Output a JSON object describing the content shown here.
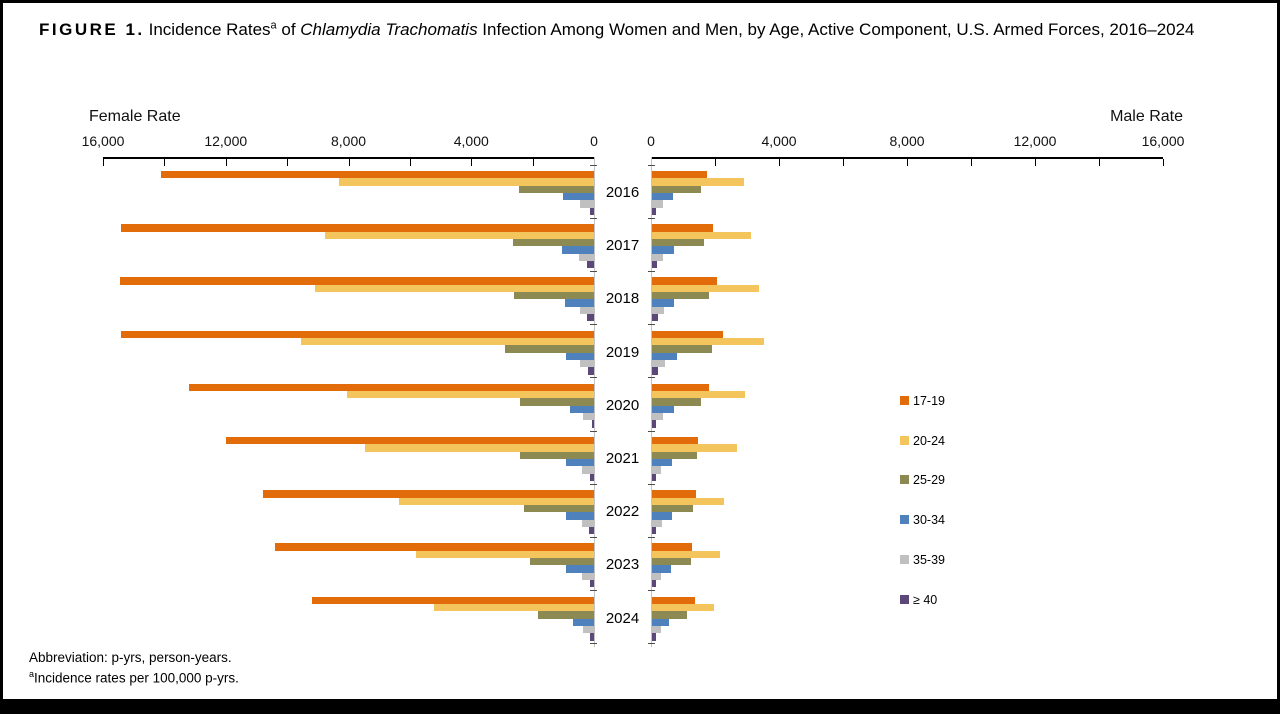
{
  "title": {
    "figure_label": "FIGURE 1.",
    "part1": "Incidence Rates",
    "superscript": "a",
    "part2": " of ",
    "italic": "Chlamydia Trachomatis",
    "part3": " Infection Among Women and Men, by Age, Active Component, U.S. Armed Forces, 2016–2024"
  },
  "axes": {
    "female_title": "Female Rate",
    "male_title": "Male Rate",
    "female_ticks": [
      {
        "label": "16,000",
        "value": 16000
      },
      {
        "label": "12,000",
        "value": 12000
      },
      {
        "label": "8,000",
        "value": 8000
      },
      {
        "label": "4,000",
        "value": 4000
      },
      {
        "label": "0",
        "value": 0
      }
    ],
    "male_ticks": [
      {
        "label": "0",
        "value": 0
      },
      {
        "label": "4,000",
        "value": 4000
      },
      {
        "label": "8,000",
        "value": 8000
      },
      {
        "label": "12,000",
        "value": 12000
      },
      {
        "label": "16,000",
        "value": 16000
      }
    ],
    "minor_tick_step": 2000,
    "max": 16000
  },
  "legend": [
    {
      "label": "17-19",
      "color": "#E36C0A"
    },
    {
      "label": "20-24",
      "color": "#F4C55C"
    },
    {
      "label": "25-29",
      "color": "#8C8A52"
    },
    {
      "label": "30-34",
      "color": "#4F81BD"
    },
    {
      "label": "35-39",
      "color": "#C0C0C0"
    },
    {
      "label": "≥ 40",
      "color": "#5B4778"
    }
  ],
  "footnotes": {
    "line1": "Abbreviation: p-yrs, person-years.",
    "line2_sup": "a",
    "line2": "Incidence rates per 100,000 p-yrs."
  },
  "chart_data": {
    "type": "bar",
    "orientation": "population-pyramid",
    "title": "Incidence Rates of Chlamydia Trachomatis Infection Among Women and Men, by Age, Active Component, U.S. Armed Forces, 2016-2024",
    "unit": "incidence rate per 100,000 p-yrs",
    "categories": [
      "2016",
      "2017",
      "2018",
      "2019",
      "2020",
      "2021",
      "2022",
      "2023",
      "2024"
    ],
    "age_groups": [
      "17-19",
      "20-24",
      "25-29",
      "30-34",
      "35-39",
      "≥ 40"
    ],
    "axis_range": [
      0,
      16000
    ],
    "grid": false,
    "legend_position": "right",
    "female": {
      "series": [
        {
          "name": "17-19",
          "values": [
            14100,
            15400,
            15450,
            15400,
            13200,
            12000,
            10800,
            10400,
            9200
          ]
        },
        {
          "name": "20-24",
          "values": [
            8300,
            8750,
            9100,
            9550,
            8050,
            7450,
            6350,
            5800,
            5200
          ]
        },
        {
          "name": "25-29",
          "values": [
            2450,
            2650,
            2600,
            2900,
            2400,
            2400,
            2270,
            2070,
            1810
          ]
        },
        {
          "name": "30-34",
          "values": [
            1000,
            1030,
            950,
            920,
            790,
            900,
            900,
            900,
            700
          ]
        },
        {
          "name": "35-39",
          "values": [
            450,
            490,
            440,
            460,
            350,
            400,
            400,
            380,
            370
          ]
        },
        {
          "name": "≥ 40",
          "values": [
            120,
            240,
            220,
            210,
            80,
            140,
            165,
            140,
            130
          ]
        }
      ]
    },
    "male": {
      "series": [
        {
          "name": "17-19",
          "values": [
            1720,
            1920,
            2040,
            2240,
            1810,
            1440,
            1380,
            1250,
            1360
          ]
        },
        {
          "name": "20-24",
          "values": [
            2900,
            3100,
            3350,
            3530,
            2930,
            2660,
            2280,
            2130,
            1950
          ]
        },
        {
          "name": "25-29",
          "values": [
            1550,
            1640,
            1790,
            1900,
            1550,
            1430,
            1290,
            1230,
            1120
          ]
        },
        {
          "name": "30-34",
          "values": [
            670,
            710,
            710,
            790,
            710,
            625,
            645,
            600,
            560
          ]
        },
        {
          "name": "35-39",
          "values": [
            345,
            365,
            385,
            430,
            345,
            300,
            320,
            300,
            300
          ]
        },
        {
          "name": "≥ 40",
          "values": [
            150,
            170,
            215,
            195,
            150,
            130,
            130,
            130,
            130
          ]
        }
      ]
    }
  }
}
